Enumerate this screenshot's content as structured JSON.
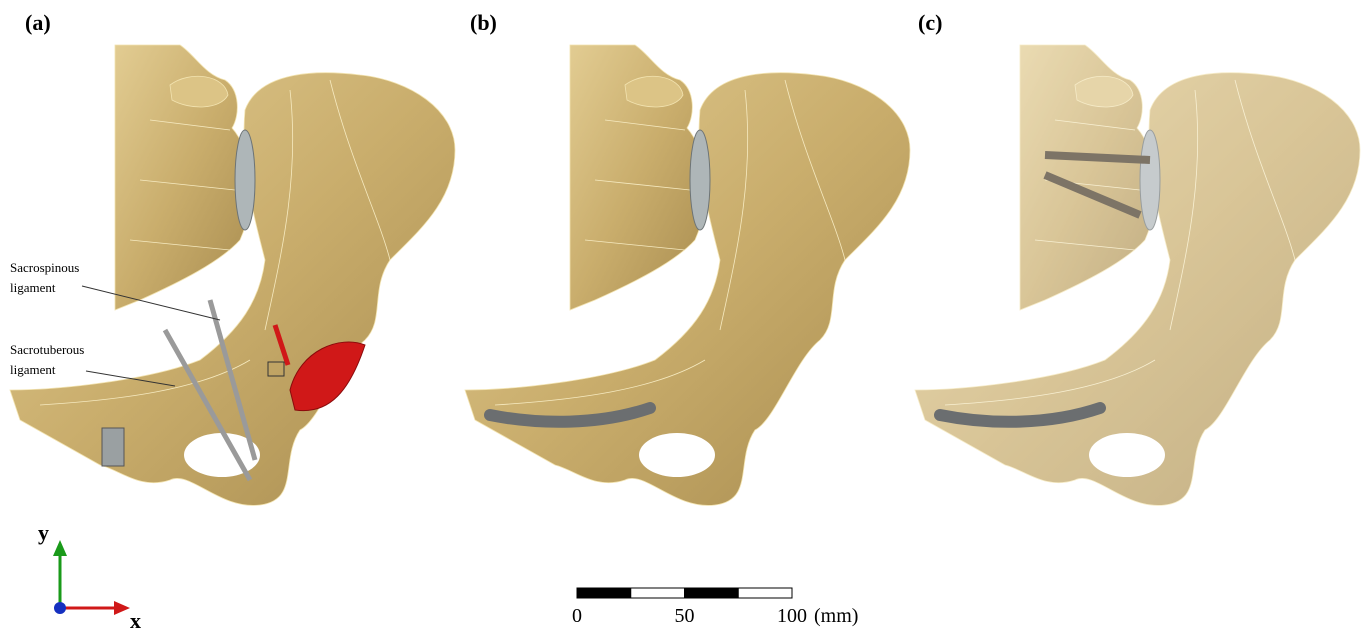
{
  "panels": [
    {
      "label": "(a)",
      "annotations": [
        {
          "lines": [
            "Sacrospinous",
            "ligament"
          ]
        },
        {
          "lines": [
            "Sacrotuberous",
            "ligament"
          ]
        }
      ]
    },
    {
      "label": "(b)"
    },
    {
      "label": "(c)"
    }
  ],
  "axes_triad": {
    "y": "y",
    "x": "x"
  },
  "scale_bar": {
    "range": [
      0,
      100
    ],
    "ticks": [
      0,
      50,
      100
    ],
    "unit": "(mm)"
  }
}
